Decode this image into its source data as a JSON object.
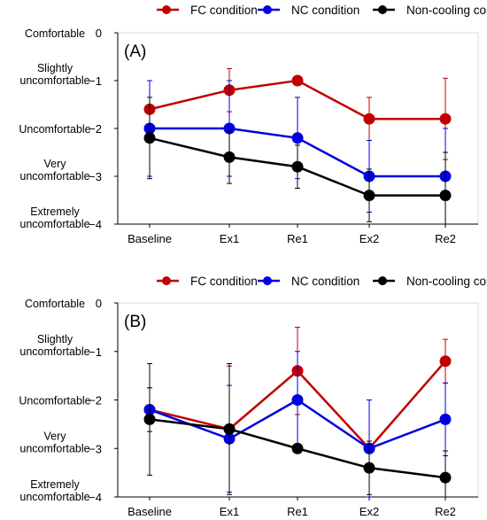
{
  "chart_data": [
    {
      "type": "line",
      "panel_label": "(A)",
      "categories": [
        "Baseline",
        "Ex1",
        "Re1",
        "Ex2",
        "Re2"
      ],
      "ylim": [
        -4,
        0
      ],
      "yticks": [
        0,
        -1,
        -2,
        -3,
        -4
      ],
      "ytick_labels": [
        "0",
        "−1",
        "−2",
        "−3",
        "−4"
      ],
      "ycategories": [
        {
          "value": 0,
          "lines": [
            "Comfortable"
          ]
        },
        {
          "value": -1,
          "lines": [
            "Slightly",
            "uncomfortable"
          ]
        },
        {
          "value": -2,
          "lines": [
            "Uncomfortable"
          ]
        },
        {
          "value": -3,
          "lines": [
            "Very",
            "uncomfortable"
          ]
        },
        {
          "value": -4,
          "lines": [
            "Extremely",
            "uncomfortable"
          ]
        }
      ],
      "legend_position": "top",
      "series": [
        {
          "name": "FC condition",
          "color": "#c00000",
          "values": [
            -1.6,
            -1.2,
            -1.0,
            -1.8,
            -1.8
          ],
          "err_up": [
            0.6,
            0.45,
            null,
            0.45,
            0.85
          ],
          "err_down": [
            0.6,
            0.45,
            null,
            0.45,
            0.85
          ]
        },
        {
          "name": "NC condition",
          "color": "#0000e0",
          "values": [
            -2.0,
            -2.0,
            -2.2,
            -3.0,
            -3.0
          ],
          "err_up": [
            1.0,
            1.0,
            0.85,
            0.75,
            1.0
          ],
          "err_down": [
            1.0,
            1.0,
            0.85,
            0.75,
            1.0
          ]
        },
        {
          "name": "Non-cooling condition",
          "color": "#000000",
          "values": [
            -2.2,
            -2.6,
            -2.8,
            -3.4,
            -3.4
          ],
          "err_up": [
            0.85,
            0.55,
            0.45,
            0.55,
            0.9
          ],
          "err_down": [
            0.85,
            0.55,
            0.45,
            0.55,
            0.9
          ]
        }
      ]
    },
    {
      "type": "line",
      "panel_label": "(B)",
      "categories": [
        "Baseline",
        "Ex1",
        "Re1",
        "Ex2",
        "Re2"
      ],
      "ylim": [
        -4,
        0
      ],
      "yticks": [
        0,
        -1,
        -2,
        -3,
        -4
      ],
      "ytick_labels": [
        "0",
        "−1",
        "−2",
        "−3",
        "−4"
      ],
      "ycategories": [
        {
          "value": 0,
          "lines": [
            "Comfortable"
          ]
        },
        {
          "value": -1,
          "lines": [
            "Slightly",
            "uncomfortable"
          ]
        },
        {
          "value": -2,
          "lines": [
            "Uncomfortable"
          ]
        },
        {
          "value": -3,
          "lines": [
            "Very",
            "uncomfortable"
          ]
        },
        {
          "value": -4,
          "lines": [
            "Extremely",
            "uncomfortable"
          ]
        }
      ],
      "legend_position": "top",
      "series": [
        {
          "name": "FC condition",
          "color": "#c00000",
          "values": [
            -2.2,
            -2.6,
            -1.4,
            -3.0,
            -1.2
          ],
          "err_up": [
            0.45,
            1.3,
            0.9,
            1.0,
            0.45
          ],
          "err_down": [
            0.45,
            1.3,
            0.9,
            1.0,
            0.45
          ]
        },
        {
          "name": "NC condition",
          "color": "#0000e0",
          "values": [
            -2.2,
            -2.8,
            -2.0,
            -3.0,
            -2.4
          ],
          "err_up": [
            0.45,
            1.1,
            1.0,
            1.0,
            0.75
          ],
          "err_down": [
            0.45,
            1.1,
            1.0,
            1.0,
            0.75
          ]
        },
        {
          "name": "Non-cooling condition",
          "color": "#000000",
          "values": [
            -2.4,
            -2.6,
            -3.0,
            -3.4,
            -3.6
          ],
          "err_up": [
            1.15,
            1.35,
            null,
            0.55,
            0.55
          ],
          "err_down": [
            1.15,
            1.35,
            null,
            0.55,
            0.55
          ]
        }
      ]
    }
  ]
}
